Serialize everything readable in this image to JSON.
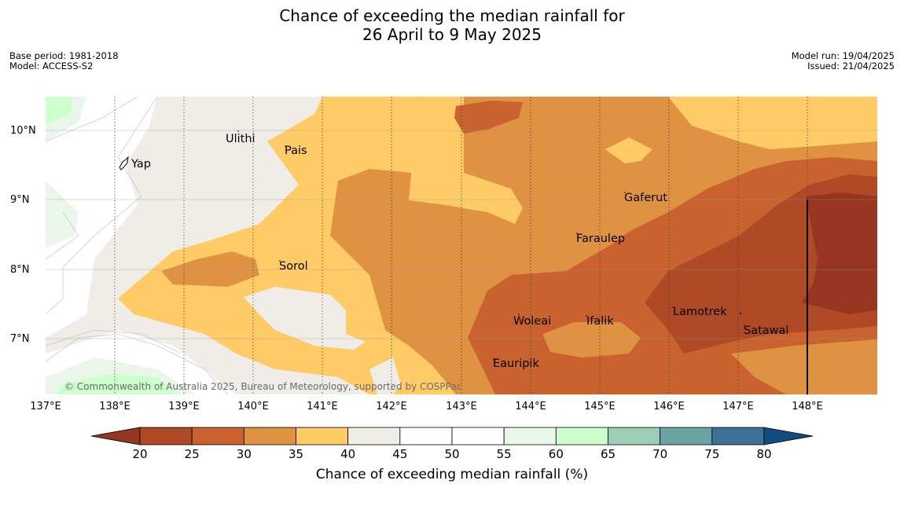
{
  "title": {
    "line1": "Chance of exceeding the median rainfall for",
    "line2": "26 April to 9 May 2025"
  },
  "meta_left": {
    "base_period": "Base period: 1981-2018",
    "model": "Model: ACCESS-S2"
  },
  "meta_right": {
    "model_run": "Model run: 19/04/2025",
    "issued": "Issued: 21/04/2025"
  },
  "map": {
    "lat_ticks": [
      "10°N",
      "9°N",
      "8°N",
      "7°N"
    ],
    "lon_ticks": [
      "137°E",
      "138°E",
      "139°E",
      "140°E",
      "141°E",
      "142°E",
      "143°E",
      "144°E",
      "145°E",
      "146°E",
      "147°E",
      "148°E"
    ],
    "places": [
      {
        "name": "Ulithi"
      },
      {
        "name": "Yap"
      },
      {
        "name": "Pais"
      },
      {
        "name": "Gaferut"
      },
      {
        "name": "Faraulep"
      },
      {
        "name": "Sorol"
      },
      {
        "name": "Lamotrek"
      },
      {
        "name": "Woleai"
      },
      {
        "name": "Ifalik"
      },
      {
        "name": "Satawal"
      },
      {
        "name": "Eauripik"
      }
    ],
    "copyright": "© Commonwealth of Australia 2025, Bureau of Meteorology, supported by COSPPac",
    "colors": {
      "20-25": "#b04925",
      "25-30": "#c9622e",
      "30-35": "#e09243",
      "35-40": "#fecb66",
      "40-45": "#f0ede8",
      "45-55": "#ffffff",
      "55-60": "#eaf6ea",
      "60-65": "#ccffcc",
      "lt-20": "#963520"
    }
  },
  "colorbar": {
    "ticks": [
      "20",
      "25",
      "30",
      "35",
      "40",
      "45",
      "50",
      "55",
      "60",
      "65",
      "70",
      "75",
      "80"
    ],
    "colors": [
      "#b04925",
      "#c9622e",
      "#e09243",
      "#fecb66",
      "#f0ede8",
      "#ffffff",
      "#ffffff",
      "#eaf6ea",
      "#ccffcc",
      "#9ccfb8",
      "#6ba3a5",
      "#3e7193"
    ],
    "under_color": "#963520",
    "over_color": "#134c7f",
    "label": "Chance of exceeding median rainfall (%)"
  }
}
